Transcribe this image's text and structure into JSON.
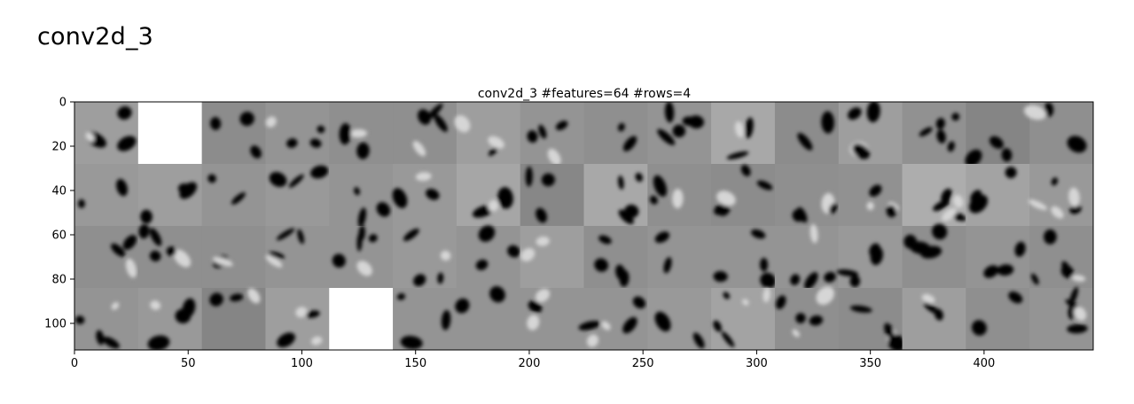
{
  "heading": "conv2d_3",
  "chart_data": {
    "type": "heatmap",
    "title": "conv2d_3 #features=64 #rows=4",
    "xlabel": "",
    "ylabel": "",
    "xlim": [
      0,
      448
    ],
    "ylim": [
      112,
      0
    ],
    "x_ticks": [
      0,
      50,
      100,
      150,
      200,
      250,
      300,
      350,
      400
    ],
    "y_ticks": [
      0,
      20,
      40,
      60,
      80,
      100
    ],
    "x_tick_labels": [
      "0",
      "50",
      "100",
      "150",
      "200",
      "250",
      "300",
      "350",
      "400"
    ],
    "y_tick_labels": [
      "0",
      "20",
      "40",
      "60",
      "80",
      "100"
    ],
    "features": 64,
    "rows": 4,
    "columns": 16,
    "tile_size": 28,
    "colormap": "gray",
    "tile_background_levels": [
      [
        0.62,
        1.0,
        0.55,
        0.58,
        0.56,
        0.56,
        0.62,
        0.58,
        0.56,
        0.58,
        0.66,
        0.55,
        0.62,
        0.57,
        0.52,
        0.56
      ],
      [
        0.6,
        0.62,
        0.58,
        0.6,
        0.58,
        0.6,
        0.65,
        0.53,
        0.66,
        0.56,
        0.55,
        0.56,
        0.57,
        0.68,
        0.64,
        0.6
      ],
      [
        0.56,
        0.56,
        0.56,
        0.58,
        0.58,
        0.6,
        0.58,
        0.62,
        0.56,
        0.58,
        0.58,
        0.58,
        0.6,
        0.56,
        0.58,
        0.56
      ],
      [
        0.58,
        0.6,
        0.52,
        0.62,
        1.0,
        0.58,
        0.58,
        0.58,
        0.58,
        0.6,
        0.64,
        0.56,
        0.55,
        0.62,
        0.56,
        0.58
      ]
    ]
  }
}
